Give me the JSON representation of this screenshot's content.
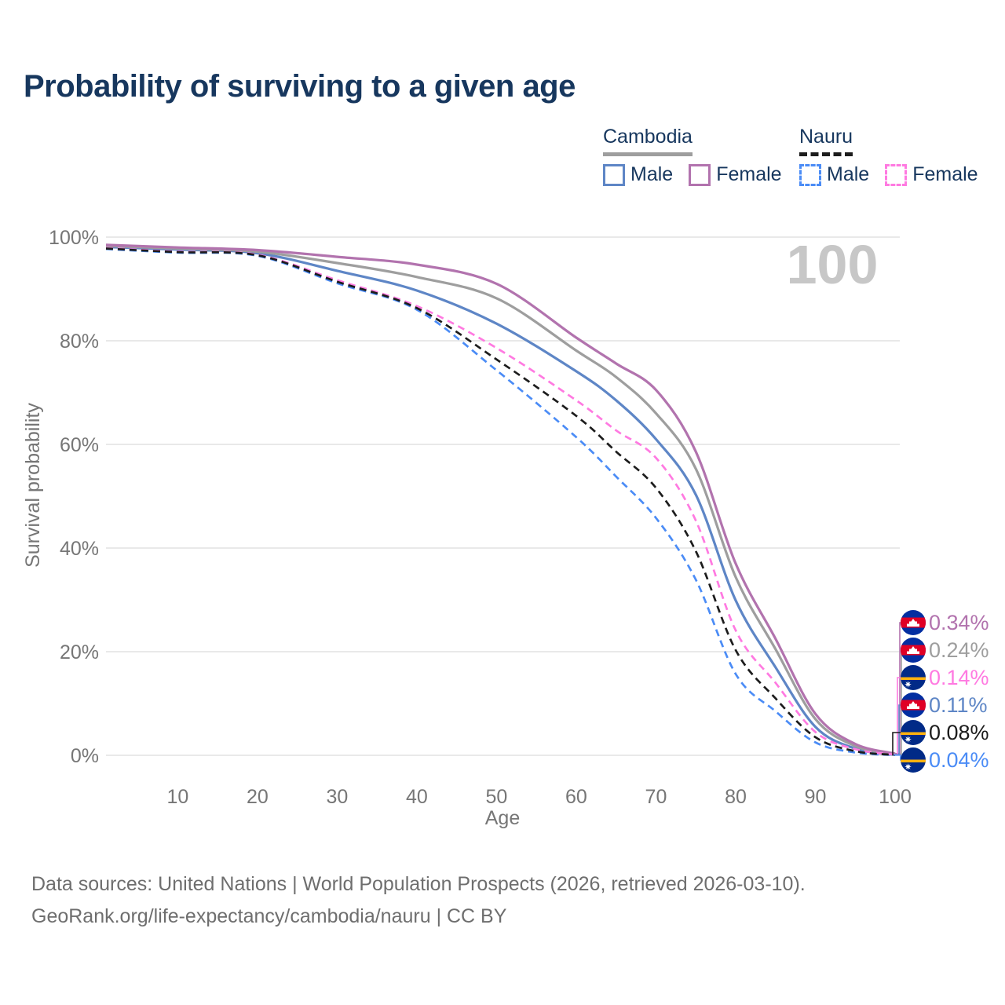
{
  "title": "Probability of surviving to a given age",
  "watermark": "100",
  "legend": {
    "groups": [
      {
        "label": "Cambodia",
        "line_style": "solid",
        "underline_color": "#9e9e9e",
        "items": [
          {
            "label": "Male",
            "color": "#5e86c6"
          },
          {
            "label": "Female",
            "color": "#b273ae"
          }
        ]
      },
      {
        "label": "Nauru",
        "line_style": "dashed",
        "underline_color": "#1c1c1c",
        "items": [
          {
            "label": "Male",
            "color": "#4b8cf6"
          },
          {
            "label": "Female",
            "color": "#ff7ae1"
          }
        ]
      }
    ]
  },
  "chart_data": {
    "type": "line",
    "title": "Probability of surviving to a given age",
    "xlabel": "Age",
    "ylabel": "Survival probability",
    "xlim": [
      1,
      100
    ],
    "ylim": [
      0,
      100
    ],
    "xticks": [
      10,
      20,
      30,
      40,
      50,
      60,
      70,
      80,
      90,
      100
    ],
    "ytick_labels": [
      "0%",
      "20%",
      "40%",
      "60%",
      "80%",
      "100%"
    ],
    "ytick_values": [
      0,
      20,
      40,
      60,
      80,
      100
    ],
    "grid": "horizontal",
    "legend_position": "top-right",
    "ages": [
      1,
      10,
      20,
      30,
      40,
      50,
      60,
      65,
      70,
      75,
      80,
      85,
      90,
      95,
      100
    ],
    "series": [
      {
        "name": "Cambodia Male",
        "country": "cambodia",
        "sex": "Male",
        "color": "#5e86c6",
        "dashed": false,
        "values": [
          98.1,
          97.6,
          96.9,
          93.5,
          89.7,
          83.3,
          74.1,
          68.5,
          61.0,
          50.3,
          29.9,
          17.0,
          5.5,
          1.3,
          0.11
        ],
        "end_label": "0.11%"
      },
      {
        "name": "Cambodia Total",
        "country": "cambodia",
        "sex": "Both",
        "color": "#9e9e9e",
        "dashed": false,
        "values": [
          98.3,
          97.8,
          97.2,
          95.0,
          92.3,
          88.2,
          78.1,
          73.0,
          66.0,
          55.3,
          34.4,
          20.5,
          7.0,
          1.8,
          0.24
        ],
        "end_label": "0.24%"
      },
      {
        "name": "Cambodia Female",
        "country": "cambodia",
        "sex": "Female",
        "color": "#b273ae",
        "dashed": false,
        "values": [
          98.5,
          98.0,
          97.5,
          96.2,
          94.7,
          91.0,
          80.6,
          75.6,
          70.5,
          58.6,
          37.0,
          22.5,
          8.0,
          2.2,
          0.34
        ],
        "end_label": "0.34%"
      },
      {
        "name": "Nauru Male",
        "country": "nauru",
        "sex": "Male",
        "color": "#4b8cf6",
        "dashed": true,
        "values": [
          97.7,
          97.0,
          96.4,
          91.1,
          86.0,
          74.3,
          61.4,
          53.8,
          45.8,
          33.9,
          15.7,
          8.5,
          2.5,
          0.55,
          0.04
        ],
        "end_label": "0.04%"
      },
      {
        "name": "Nauru Female",
        "country": "nauru",
        "sex": "Female",
        "color": "#ff7ae1",
        "dashed": true,
        "values": [
          97.9,
          97.2,
          96.6,
          91.7,
          86.7,
          78.6,
          68.5,
          62.7,
          57.4,
          45.3,
          24.1,
          14.0,
          4.5,
          1.2,
          0.14
        ],
        "end_label": "0.14%"
      },
      {
        "name": "Nauru Total",
        "country": "nauru",
        "sex": "Both",
        "color": "#1c1c1c",
        "dashed": true,
        "values": [
          97.8,
          97.1,
          96.5,
          91.4,
          86.3,
          76.4,
          65.5,
          58.6,
          51.6,
          39.4,
          20.3,
          11.0,
          3.5,
          0.8,
          0.08
        ],
        "end_label": "0.08%"
      }
    ],
    "end_labels": [
      {
        "text": "0.34%",
        "color": "#b273ae",
        "flag": "cambodia",
        "series": "Cambodia Female"
      },
      {
        "text": "0.24%",
        "color": "#9e9e9e",
        "flag": "cambodia",
        "series": "Cambodia Total"
      },
      {
        "text": "0.14%",
        "color": "#ff7ae1",
        "flag": "nauru",
        "series": "Nauru Female"
      },
      {
        "text": "0.11%",
        "color": "#5e86c6",
        "flag": "cambodia",
        "series": "Cambodia Male"
      },
      {
        "text": "0.08%",
        "color": "#1c1c1c",
        "flag": "nauru",
        "series": "Nauru Total"
      },
      {
        "text": "0.04%",
        "color": "#4b8cf6",
        "flag": "nauru",
        "series": "Nauru Male"
      }
    ]
  },
  "colors": {
    "grid": "#e9e9e9",
    "axis_text": "#767676",
    "watermark": "#c7c7c7",
    "title": "#17375e",
    "footer": "#6e6e6e",
    "flag_cambodia_blue": "#032ea1",
    "flag_cambodia_red": "#e00025",
    "flag_nauru_blue": "#012a87",
    "flag_nauru_yellow": "#ffb20f"
  },
  "footer": {
    "line1": "Data sources: United Nations | World Population Prospects (2026, retrieved 2026-03-10).",
    "line2": "GeoRank.org/life-expectancy/cambodia/nauru | CC BY"
  }
}
